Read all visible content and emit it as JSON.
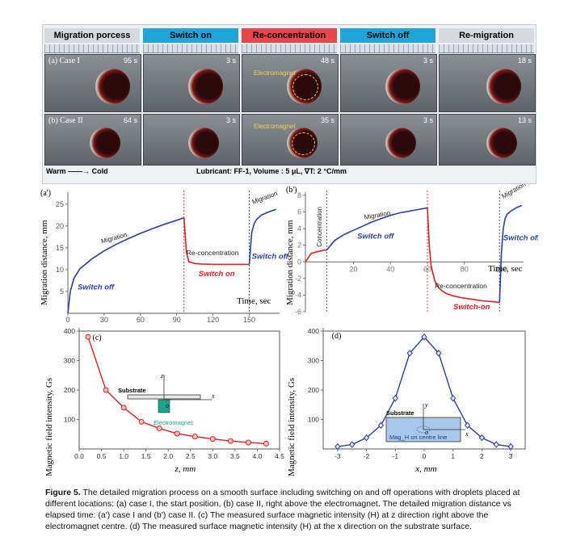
{
  "photos": {
    "headers": [
      {
        "label": "Migration porcess",
        "bg": "#d6dade",
        "fg": "#000"
      },
      {
        "label": "Switch on",
        "bg": "#1fa6d9",
        "fg": "#000"
      },
      {
        "label": "Re-concentration",
        "bg": "#e8454a",
        "fg": "#000"
      },
      {
        "label": "Switch off",
        "bg": "#1fa6d9",
        "fg": "#000"
      },
      {
        "label": "Re-migration",
        "bg": "#d6dade",
        "fg": "#000"
      }
    ],
    "case1_label": "(a) Case I",
    "case2_label": "(b) Case II",
    "case1_times": [
      "95 s",
      "3 s",
      "48 s",
      "3 s",
      "18 s"
    ],
    "case2_times": [
      "64 s",
      "3 s",
      "35 s",
      "3 s",
      "13 s"
    ],
    "electromagnet_label": "Electromagnet",
    "warm_cold": "Warm ——→ Cold",
    "lubricant": "Lubricant: FF-1, Volume : 5 μL, ∇T: 2 °C/mm"
  },
  "chart_data": [
    {
      "type": "line",
      "panel": "(a')",
      "ylabel": "Migration distance, mm",
      "xlabel": "Time, sec",
      "xticks": [
        0,
        30,
        60,
        90,
        120,
        150
      ],
      "yticks": [
        5,
        10,
        15,
        20,
        25
      ],
      "xlim": [
        0,
        175
      ],
      "ylim": [
        0,
        27
      ],
      "annotations": [
        "Migration",
        "Switch off",
        "Re-concentration",
        "Switch on",
        "Switch off",
        "Migration"
      ],
      "series": [
        {
          "color": "#2b3f9e",
          "x": [
            0,
            2,
            5,
            10,
            20,
            30,
            40,
            50,
            60,
            70,
            80,
            90,
            96
          ],
          "y": [
            0,
            5,
            8,
            10.2,
            12.5,
            14.3,
            15.8,
            17.1,
            18.3,
            19.4,
            20.4,
            21.3,
            21.9
          ]
        },
        {
          "color": "#e02020",
          "x": [
            96,
            98,
            100,
            105,
            110,
            120,
            130,
            140,
            150
          ],
          "y": [
            21.9,
            14,
            11.8,
            11.4,
            11.3,
            11.2,
            11.2,
            11.2,
            11.2
          ]
        },
        {
          "color": "#2b3f9e",
          "x": [
            150,
            151,
            152,
            154,
            156,
            160,
            166,
            172
          ],
          "y": [
            11.2,
            15,
            18.5,
            20.5,
            21.5,
            22.5,
            23.2,
            23.8
          ]
        }
      ],
      "vlines": [
        {
          "x": 96,
          "color": "#e02020"
        },
        {
          "x": 150,
          "color": "#2b3f9e"
        }
      ]
    },
    {
      "type": "line",
      "panel": "(b')",
      "ylabel": "Migration distance, mm",
      "xlabel": "Time, sec",
      "xticks": [
        20,
        40,
        60,
        80,
        100
      ],
      "yticks": [
        -6,
        -4,
        -2,
        0,
        2,
        4,
        6,
        8
      ],
      "xlim": [
        -6,
        112
      ],
      "ylim": [
        -6,
        8
      ],
      "annotations": [
        "Concentration",
        "Migration",
        "Switch off",
        "Re-concentration",
        "Switch-on",
        "Switch off",
        "Migration"
      ],
      "series": [
        {
          "color": "#e02020",
          "x": [
            -6,
            -5,
            -3,
            0,
            2,
            4,
            5.5
          ],
          "y": [
            0,
            0.3,
            1,
            1.2,
            1.3,
            1.4,
            1.4
          ]
        },
        {
          "color": "#2b3f9e",
          "x": [
            5.5,
            8,
            10,
            15,
            20,
            25,
            30,
            35,
            40,
            45,
            50,
            55,
            60
          ],
          "y": [
            1.4,
            2.1,
            2.6,
            3.3,
            3.8,
            4.3,
            4.8,
            5.2,
            5.6,
            5.9,
            6.1,
            6.3,
            6.5
          ]
        },
        {
          "color": "#e02020",
          "x": [
            60,
            61,
            62,
            64,
            66,
            68,
            70,
            74,
            78,
            84,
            90,
            96,
            99
          ],
          "y": [
            6.5,
            2,
            -0.5,
            -2.3,
            -3.1,
            -3.5,
            -3.8,
            -4.1,
            -4.3,
            -4.5,
            -4.7,
            -4.8,
            -4.9
          ]
        },
        {
          "color": "#2b3f9e",
          "x": [
            99,
            100,
            101,
            102,
            103,
            105,
            108,
            111
          ],
          "y": [
            -4.9,
            1,
            4,
            5.2,
            5.7,
            6.1,
            6.5,
            6.8
          ]
        }
      ],
      "vlines": [
        {
          "x": 5.5,
          "color": "#2b3f9e"
        },
        {
          "x": 60,
          "color": "#e02020"
        },
        {
          "x": 99,
          "color": "#2b3f9e"
        }
      ]
    },
    {
      "type": "line",
      "panel": "(c)",
      "ylabel": "Magnetic field intensity, Gs",
      "xlabel": "z, mm",
      "xticks": [
        0.0,
        0.5,
        1.0,
        1.5,
        2.0,
        2.5,
        3.0,
        3.5,
        4.0,
        4.5
      ],
      "yticks": [
        100,
        200,
        300,
        400
      ],
      "xlim": [
        0,
        4.5
      ],
      "ylim": [
        0,
        400
      ],
      "inset_labels": [
        "Substrate",
        "Electromagnet",
        "z",
        "x",
        "o"
      ],
      "series": [
        {
          "color": "#e02020",
          "x": [
            0.2,
            0.6,
            1.0,
            1.4,
            1.8,
            2.2,
            2.6,
            3.0,
            3.4,
            3.8,
            4.2
          ],
          "y": [
            380,
            200,
            140,
            92,
            70,
            52,
            42,
            34,
            27,
            22,
            18
          ]
        }
      ]
    },
    {
      "type": "line",
      "panel": "(d)",
      "ylabel": "Magnetic field intensity, Gs",
      "xlabel": "x, mm",
      "xticks": [
        -3,
        -2,
        -1,
        0,
        1,
        2,
        3
      ],
      "yticks": [
        100,
        200,
        300,
        400
      ],
      "xlim": [
        -3.5,
        3.5
      ],
      "ylim": [
        0,
        400
      ],
      "inset_labels": [
        "Substrate",
        "Mag_H on centre line",
        "y",
        "x",
        "o"
      ],
      "series": [
        {
          "color": "#2b3f9e",
          "x": [
            -3,
            -2.5,
            -2,
            -1.5,
            -1,
            -0.5,
            0,
            0.5,
            1,
            1.5,
            2,
            2.5,
            3
          ],
          "y": [
            8,
            15,
            38,
            80,
            172,
            325,
            380,
            325,
            172,
            80,
            38,
            15,
            8
          ]
        }
      ]
    }
  ],
  "caption": {
    "label": "Figure 5.",
    "text": "The detailed migration process on a smooth surface including switching on and off operations with droplets placed at different locations: (a) case I, the start position, (b) case II, right above the electromagnet. The detailed migration distance vs elapsed time: (a') case I and (b') case II. (c) The measured surface magnetic intensity (H) at z direction right above the electromagnet centre. (d) The measured surface magnetic intensity (H) at the x direction on the substrate surface."
  }
}
